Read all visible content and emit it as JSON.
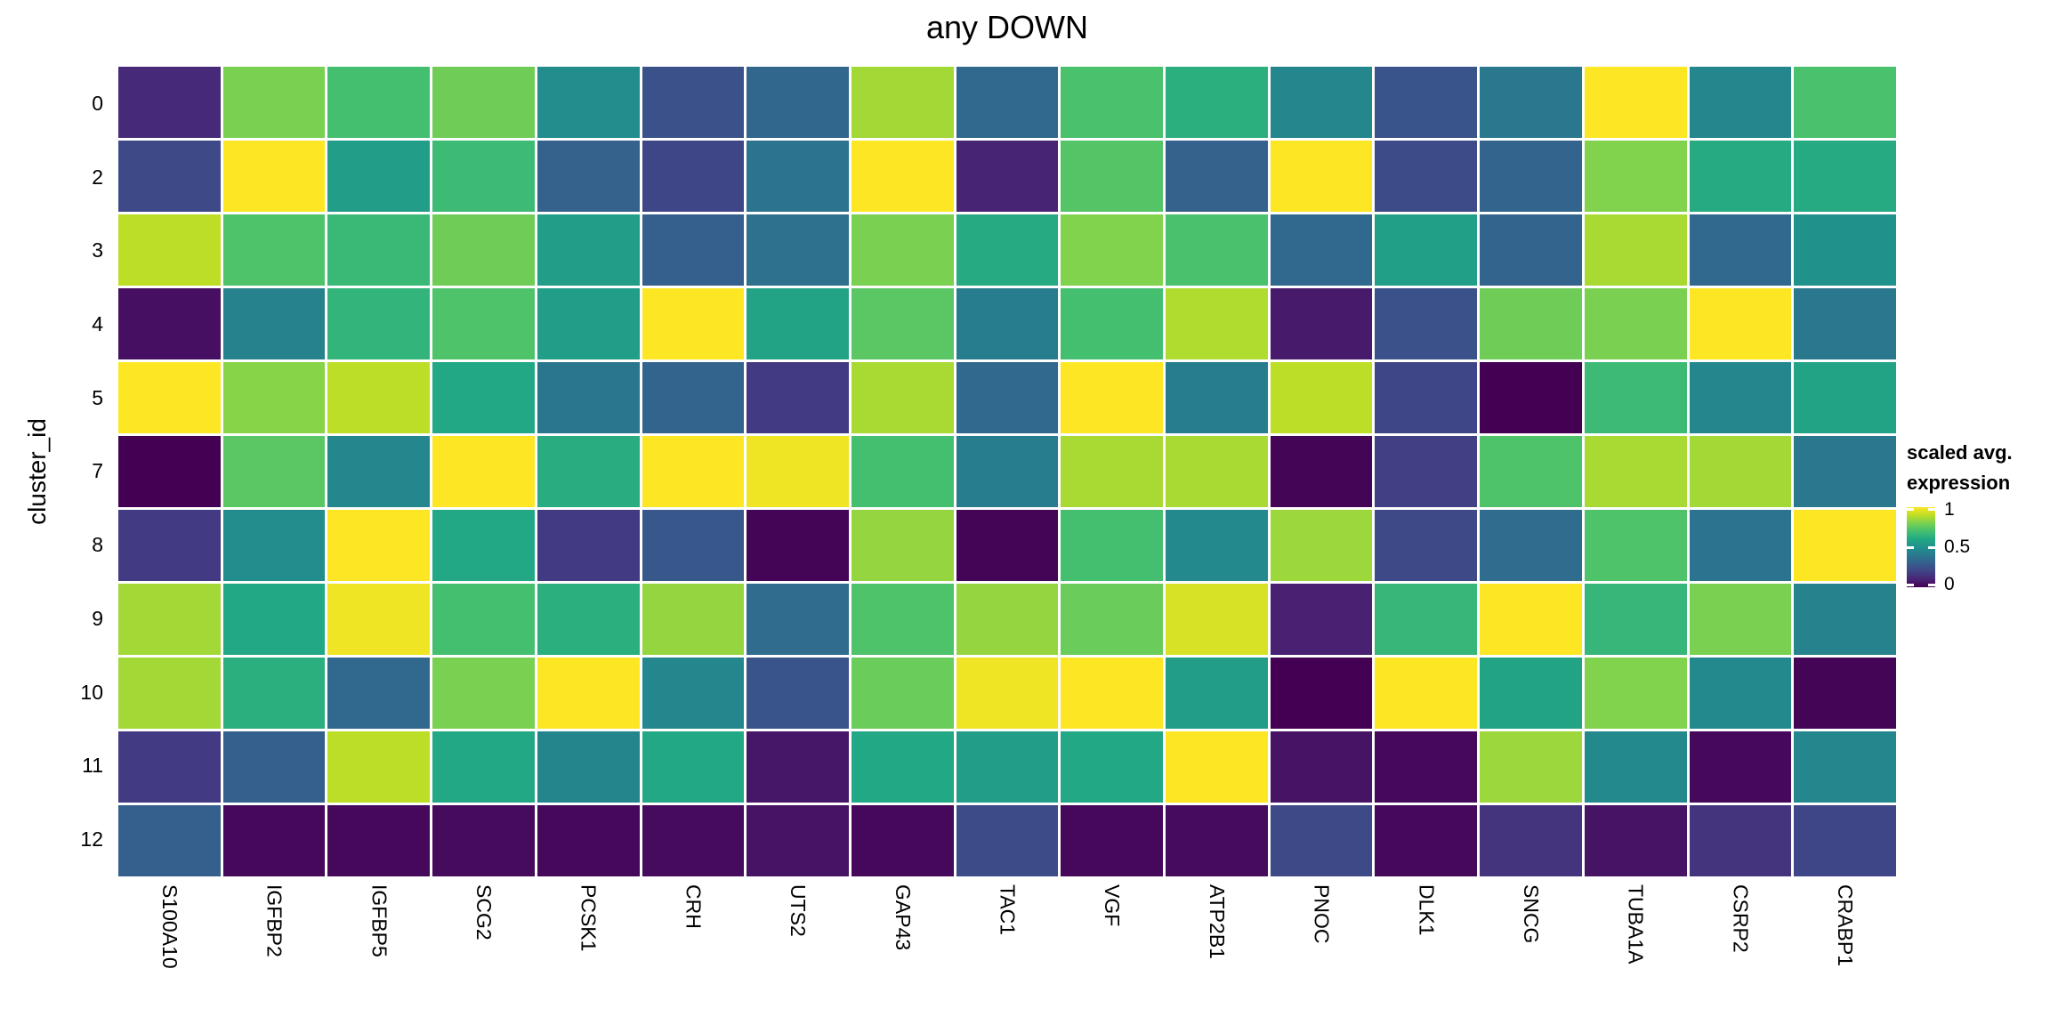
{
  "title": "any DOWN",
  "y_axis_title": "cluster_id",
  "legend": {
    "title_line1": "scaled avg.",
    "title_line2": "expression",
    "tick_labels": [
      "1",
      "0.5",
      "0"
    ],
    "tick_positions_pct": [
      3,
      50,
      97
    ]
  },
  "colors": {
    "background": "#ffffff",
    "gridline": "#ffffff",
    "text": "#000000"
  },
  "chart_data": {
    "type": "heatmap",
    "title": "any DOWN",
    "xlabel": "",
    "ylabel": "cluster_id",
    "legend_title": "scaled avg. expression",
    "colormap": "viridis",
    "value_range": [
      0,
      1
    ],
    "grid": false,
    "legend_position": "right",
    "columns": [
      "S100A10",
      "IGFBP2",
      "IGFBP5",
      "SCG2",
      "PCSK1",
      "CRH",
      "UTS2",
      "GAP43",
      "TAC1",
      "VGF",
      "ATP2B1",
      "PNOC",
      "DLK1",
      "SNCG",
      "TUBA1A",
      "CSRP2",
      "CRABP1"
    ],
    "rows": [
      "0",
      "2",
      "3",
      "4",
      "5",
      "7",
      "8",
      "9",
      "10",
      "11",
      "12"
    ],
    "values": [
      [
        0.12,
        0.8,
        0.7,
        0.78,
        0.48,
        0.25,
        0.33,
        0.86,
        0.34,
        0.71,
        0.63,
        0.46,
        0.26,
        0.4,
        1.0,
        0.46,
        0.71
      ],
      [
        0.22,
        1.0,
        0.55,
        0.68,
        0.31,
        0.21,
        0.38,
        1.0,
        0.1,
        0.73,
        0.31,
        1.0,
        0.23,
        0.32,
        0.81,
        0.61,
        0.61
      ],
      [
        0.9,
        0.72,
        0.67,
        0.78,
        0.55,
        0.3,
        0.37,
        0.8,
        0.61,
        0.81,
        0.71,
        0.34,
        0.56,
        0.32,
        0.87,
        0.34,
        0.5
      ],
      [
        0.04,
        0.44,
        0.65,
        0.72,
        0.55,
        1.0,
        0.58,
        0.74,
        0.42,
        0.7,
        0.88,
        0.07,
        0.25,
        0.78,
        0.8,
        1.0,
        0.4
      ],
      [
        1.0,
        0.82,
        0.9,
        0.6,
        0.39,
        0.32,
        0.17,
        0.87,
        0.34,
        1.0,
        0.42,
        0.9,
        0.21,
        0.0,
        0.68,
        0.46,
        0.58
      ],
      [
        0.0,
        0.74,
        0.46,
        1.0,
        0.62,
        1.0,
        0.98,
        0.7,
        0.42,
        0.87,
        0.87,
        0.01,
        0.19,
        0.72,
        0.87,
        0.86,
        0.4
      ],
      [
        0.17,
        0.48,
        1.0,
        0.6,
        0.17,
        0.27,
        0.01,
        0.84,
        0.01,
        0.7,
        0.47,
        0.85,
        0.22,
        0.35,
        0.72,
        0.38,
        1.0
      ],
      [
        0.86,
        0.6,
        0.98,
        0.7,
        0.63,
        0.84,
        0.35,
        0.72,
        0.84,
        0.77,
        0.94,
        0.09,
        0.66,
        1.0,
        0.66,
        0.8,
        0.44
      ],
      [
        0.86,
        0.63,
        0.34,
        0.8,
        1.0,
        0.46,
        0.26,
        0.77,
        0.98,
        1.0,
        0.55,
        0.0,
        1.0,
        0.58,
        0.81,
        0.47,
        0.01
      ],
      [
        0.17,
        0.3,
        0.9,
        0.6,
        0.45,
        0.6,
        0.06,
        0.6,
        0.55,
        0.6,
        1.0,
        0.05,
        0.02,
        0.85,
        0.47,
        0.02,
        0.46
      ],
      [
        0.3,
        0.02,
        0.02,
        0.03,
        0.02,
        0.03,
        0.05,
        0.02,
        0.23,
        0.02,
        0.03,
        0.22,
        0.02,
        0.15,
        0.05,
        0.15,
        0.21
      ]
    ]
  }
}
